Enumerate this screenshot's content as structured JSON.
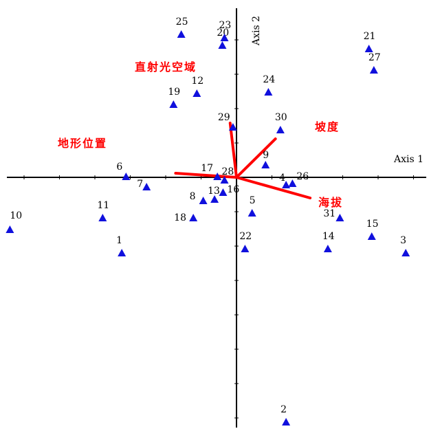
{
  "chart_data": {
    "type": "scatter",
    "title": "",
    "xlabel": "Axis 1",
    "ylabel": "Axis 2",
    "xlim": [
      -3.2,
      2.4
    ],
    "ylim": [
      -3.5,
      2.4
    ],
    "grid": false,
    "points": [
      {
        "label": "1",
        "x": -1.62,
        "y": -1.1
      },
      {
        "label": "2",
        "x": 0.7,
        "y": -3.56
      },
      {
        "label": "3",
        "x": 2.39,
        "y": -1.1
      },
      {
        "label": "5",
        "x": 0.22,
        "y": -0.52
      },
      {
        "label": "6",
        "x": -1.56,
        "y": 0.01
      },
      {
        "label": "7",
        "x": -1.27,
        "y": -0.14
      },
      {
        "label": "8",
        "x": -0.47,
        "y": -0.34
      },
      {
        "label": "9",
        "x": 0.41,
        "y": 0.18
      },
      {
        "label": "10",
        "x": -3.2,
        "y": -0.76
      },
      {
        "label": "11",
        "x": -1.89,
        "y": -0.59
      },
      {
        "label": "12",
        "x": -0.56,
        "y": 1.22
      },
      {
        "label": "13",
        "x": -0.31,
        "y": -0.32
      },
      {
        "label": "14",
        "x": 1.29,
        "y": -1.04
      },
      {
        "label": "15",
        "x": 1.91,
        "y": -0.86
      },
      {
        "label": "16",
        "x": -0.19,
        "y": -0.22
      },
      {
        "label": "17",
        "x": -0.27,
        "y": 0.01
      },
      {
        "label": "18",
        "x": -0.61,
        "y": -0.59
      },
      {
        "label": "19",
        "x": -0.89,
        "y": 1.06
      },
      {
        "label": "20",
        "x": -0.2,
        "y": 1.92
      },
      {
        "label": "21",
        "x": 1.87,
        "y": 1.87
      },
      {
        "label": "22",
        "x": 0.12,
        "y": -1.04
      },
      {
        "label": "23",
        "x": -0.17,
        "y": 2.03
      },
      {
        "label": "24",
        "x": 0.45,
        "y": 1.24
      },
      {
        "label": "25",
        "x": -0.78,
        "y": 2.08
      },
      {
        "label": "26",
        "x": 0.79,
        "y": -0.09
      },
      {
        "label": "27",
        "x": 1.94,
        "y": 1.56
      },
      {
        "label": "28",
        "x": -0.17,
        "y": -0.04
      },
      {
        "label": "29",
        "x": -0.05,
        "y": 0.73
      },
      {
        "label": "30",
        "x": 0.62,
        "y": 0.69
      },
      {
        "label": "31",
        "x": 1.46,
        "y": -0.59
      },
      {
        "label": "4",
        "x": 0.7,
        "y": -0.11
      }
    ],
    "vectors": [
      {
        "label": "直射光空域",
        "x": -0.09,
        "y": 0.79
      },
      {
        "label": "坡度",
        "x": 0.55,
        "y": 0.56
      },
      {
        "label": "地形位置",
        "x": -0.86,
        "y": 0.06
      },
      {
        "label": "海拔",
        "x": 1.04,
        "y": -0.3
      }
    ],
    "colors": {
      "points": "#1010dd",
      "vectors": "#ff0000",
      "axes": "#000000"
    }
  }
}
